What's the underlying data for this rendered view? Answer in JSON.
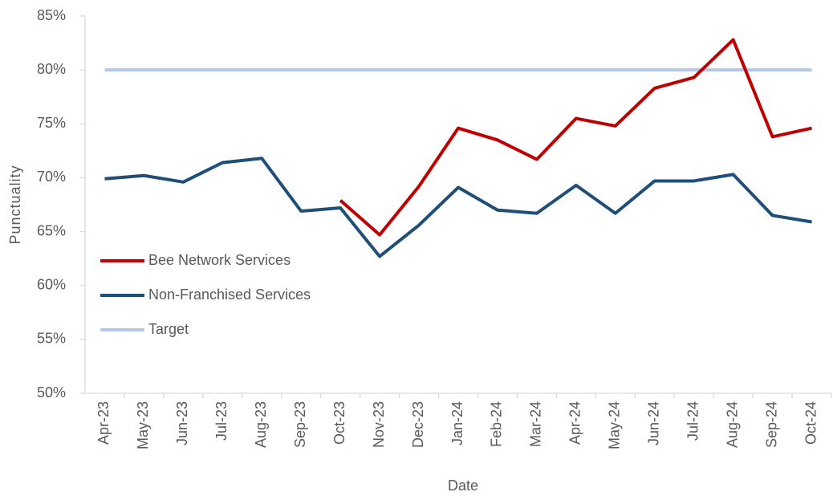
{
  "chart_data": {
    "type": "line",
    "x_label": "Date",
    "y_label": "Punctuality",
    "categories": [
      "Apr-23",
      "May-23",
      "Jun-23",
      "Jul-23",
      "Aug-23",
      "Sep-23",
      "Oct-23",
      "Nov-23",
      "Dec-23",
      "Jan-24",
      "Feb-24",
      "Mar-24",
      "Apr-24",
      "May-24",
      "Jun-24",
      "Jul-24",
      "Aug-24",
      "Sep-24",
      "Oct-24"
    ],
    "series": [
      {
        "name": "Bee Network Services",
        "color": "#c00000",
        "values": [
          null,
          null,
          null,
          null,
          null,
          null,
          67.9,
          64.7,
          69.2,
          74.6,
          73.5,
          71.7,
          75.5,
          74.8,
          78.3,
          79.3,
          82.8,
          73.8,
          74.6
        ]
      },
      {
        "name": "Non-Franchised Services",
        "color": "#1f4e79",
        "values": [
          69.9,
          70.2,
          69.6,
          71.4,
          71.8,
          66.9,
          67.2,
          62.7,
          65.6,
          69.1,
          67.0,
          66.7,
          69.3,
          66.7,
          69.7,
          69.7,
          70.3,
          66.5,
          65.9
        ]
      },
      {
        "name": "Target",
        "color": "#b4c7e7",
        "values": [
          80,
          80,
          80,
          80,
          80,
          80,
          80,
          80,
          80,
          80,
          80,
          80,
          80,
          80,
          80,
          80,
          80,
          80,
          80
        ]
      }
    ],
    "ylim": [
      50,
      85
    ],
    "yticks": [
      {
        "value": 50,
        "label": "50%"
      },
      {
        "value": 55,
        "label": "55%"
      },
      {
        "value": 60,
        "label": "60%"
      },
      {
        "value": 65,
        "label": "65%"
      },
      {
        "value": 70,
        "label": "70%"
      },
      {
        "value": 75,
        "label": "75%"
      },
      {
        "value": 80,
        "label": "80%"
      },
      {
        "value": 85,
        "label": "85%"
      }
    ],
    "grid": false,
    "legend": "left"
  }
}
